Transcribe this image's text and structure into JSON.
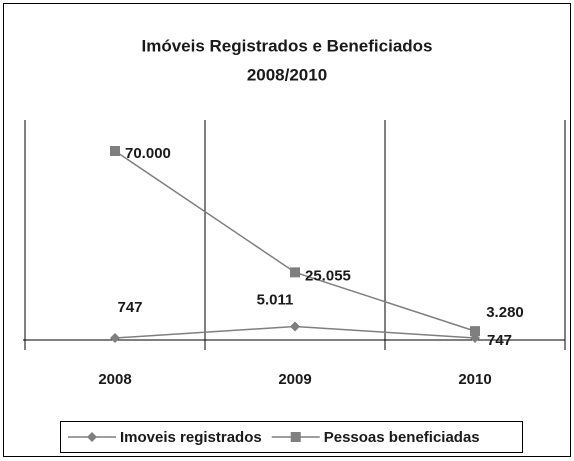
{
  "chart_data": {
    "type": "line",
    "title": "Imóveis Registrados e Beneficiados",
    "subtitle": "2008/2010",
    "categories": [
      "2008",
      "2009",
      "2010"
    ],
    "series": [
      {
        "name": "Imoveis registrados",
        "color": "#7f7f7f",
        "marker": "diamond",
        "values": [
          747,
          5011,
          747
        ],
        "value_labels": [
          "747",
          "5.011",
          "747"
        ]
      },
      {
        "name": "Pessoas beneficiadas",
        "color": "#7f7f7f",
        "marker": "square",
        "values": [
          70000,
          25055,
          3280
        ],
        "value_labels": [
          "70.000",
          "25.055",
          "3.280"
        ]
      }
    ],
    "ylim": [
      0,
      80000
    ],
    "grid": true,
    "legend": "bottom"
  }
}
